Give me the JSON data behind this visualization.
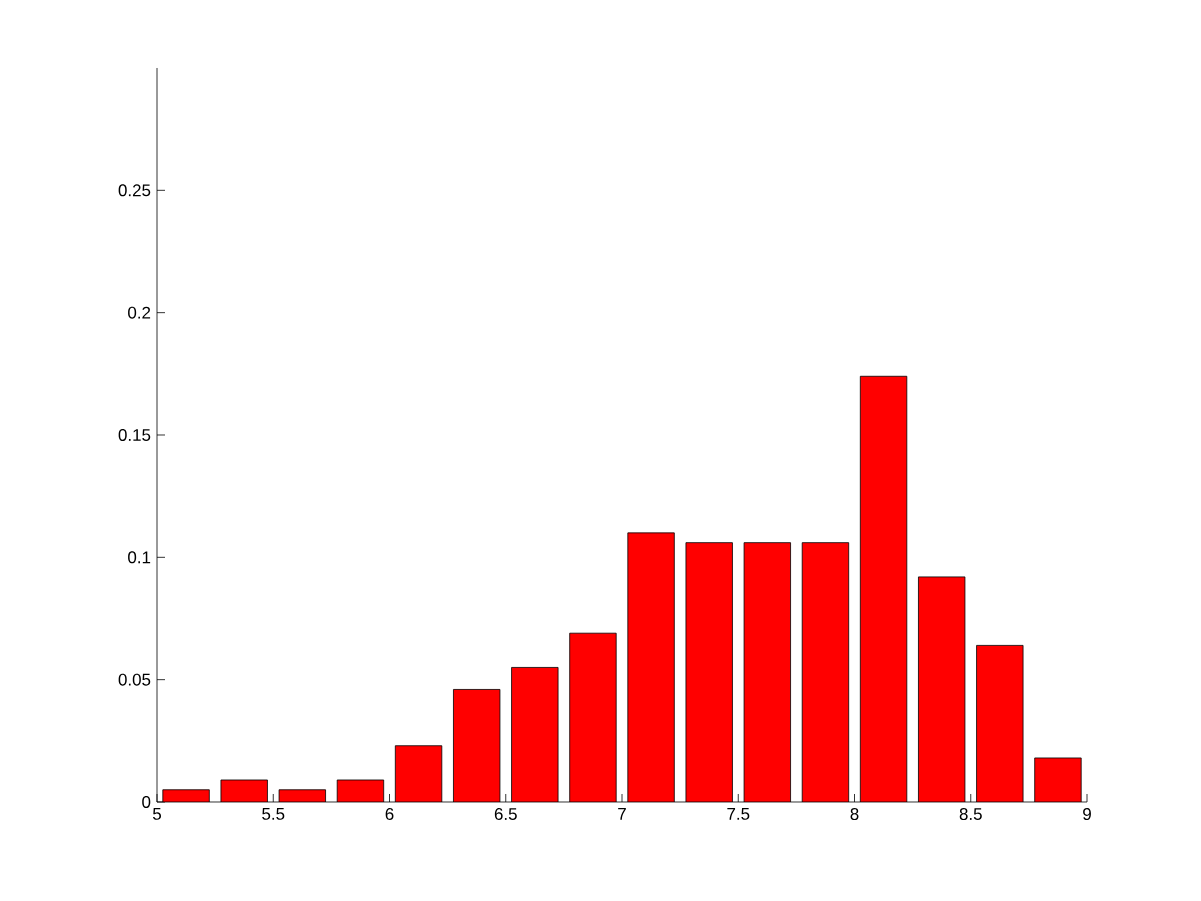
{
  "chart_data": {
    "type": "histogram",
    "bins": [
      5,
      5.25,
      5.5,
      5.75,
      6,
      6.25,
      6.5,
      6.75,
      7,
      7.25,
      7.5,
      7.75,
      8,
      8.25,
      8.5,
      8.75,
      9
    ],
    "values": [
      0.005,
      0.009,
      0.005,
      0.009,
      0.023,
      0.046,
      0.055,
      0.069,
      0.11,
      0.106,
      0.106,
      0.106,
      0.174,
      0.092,
      0.064,
      0.018
    ],
    "color": "#ff0000",
    "xlim": [
      5,
      9
    ],
    "ylim": [
      0,
      0.3
    ],
    "xticks": [
      5,
      5.5,
      6,
      6.5,
      7,
      7.5,
      8,
      8.5,
      9
    ],
    "yticks": [
      0,
      0.05,
      0.1,
      0.15,
      0.2,
      0.25
    ]
  }
}
